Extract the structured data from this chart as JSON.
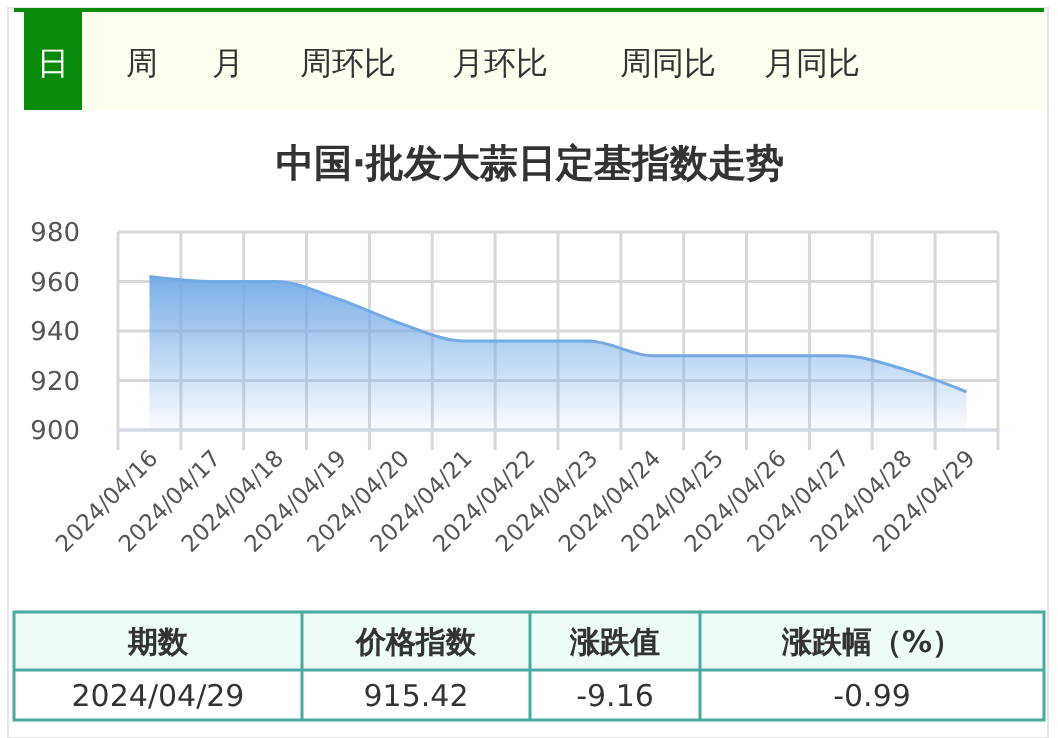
{
  "chart_data": {
    "type": "area",
    "title": "中国·批发大蒜日定基指数走势",
    "categories": [
      "2024/04/16",
      "2024/04/17",
      "2024/04/18",
      "2024/04/19",
      "2024/04/20",
      "2024/04/21",
      "2024/04/22",
      "2024/04/23",
      "2024/04/24",
      "2024/04/25",
      "2024/04/26",
      "2024/04/27",
      "2024/04/28",
      "2024/04/29"
    ],
    "series": [
      {
        "color": "#72aae6",
        "values": [
          962,
          960,
          960,
          953,
          943,
          936,
          936,
          936,
          930,
          930,
          930,
          930,
          924.58,
          915.42
        ]
      }
    ],
    "ylim": [
      900,
      980
    ],
    "yticks": [
      900,
      920,
      940,
      960,
      980
    ],
    "grid": true,
    "marker": "none",
    "annotations": [
      "日",
      "周",
      "月",
      "周环比",
      "月环比",
      "周同比",
      "月同比",
      "期数",
      "价格指数",
      "涨跌值",
      "涨跌幅（%）",
      "2024/04/29",
      "915.42",
      "-9.16",
      "-0.99"
    ]
  }
}
